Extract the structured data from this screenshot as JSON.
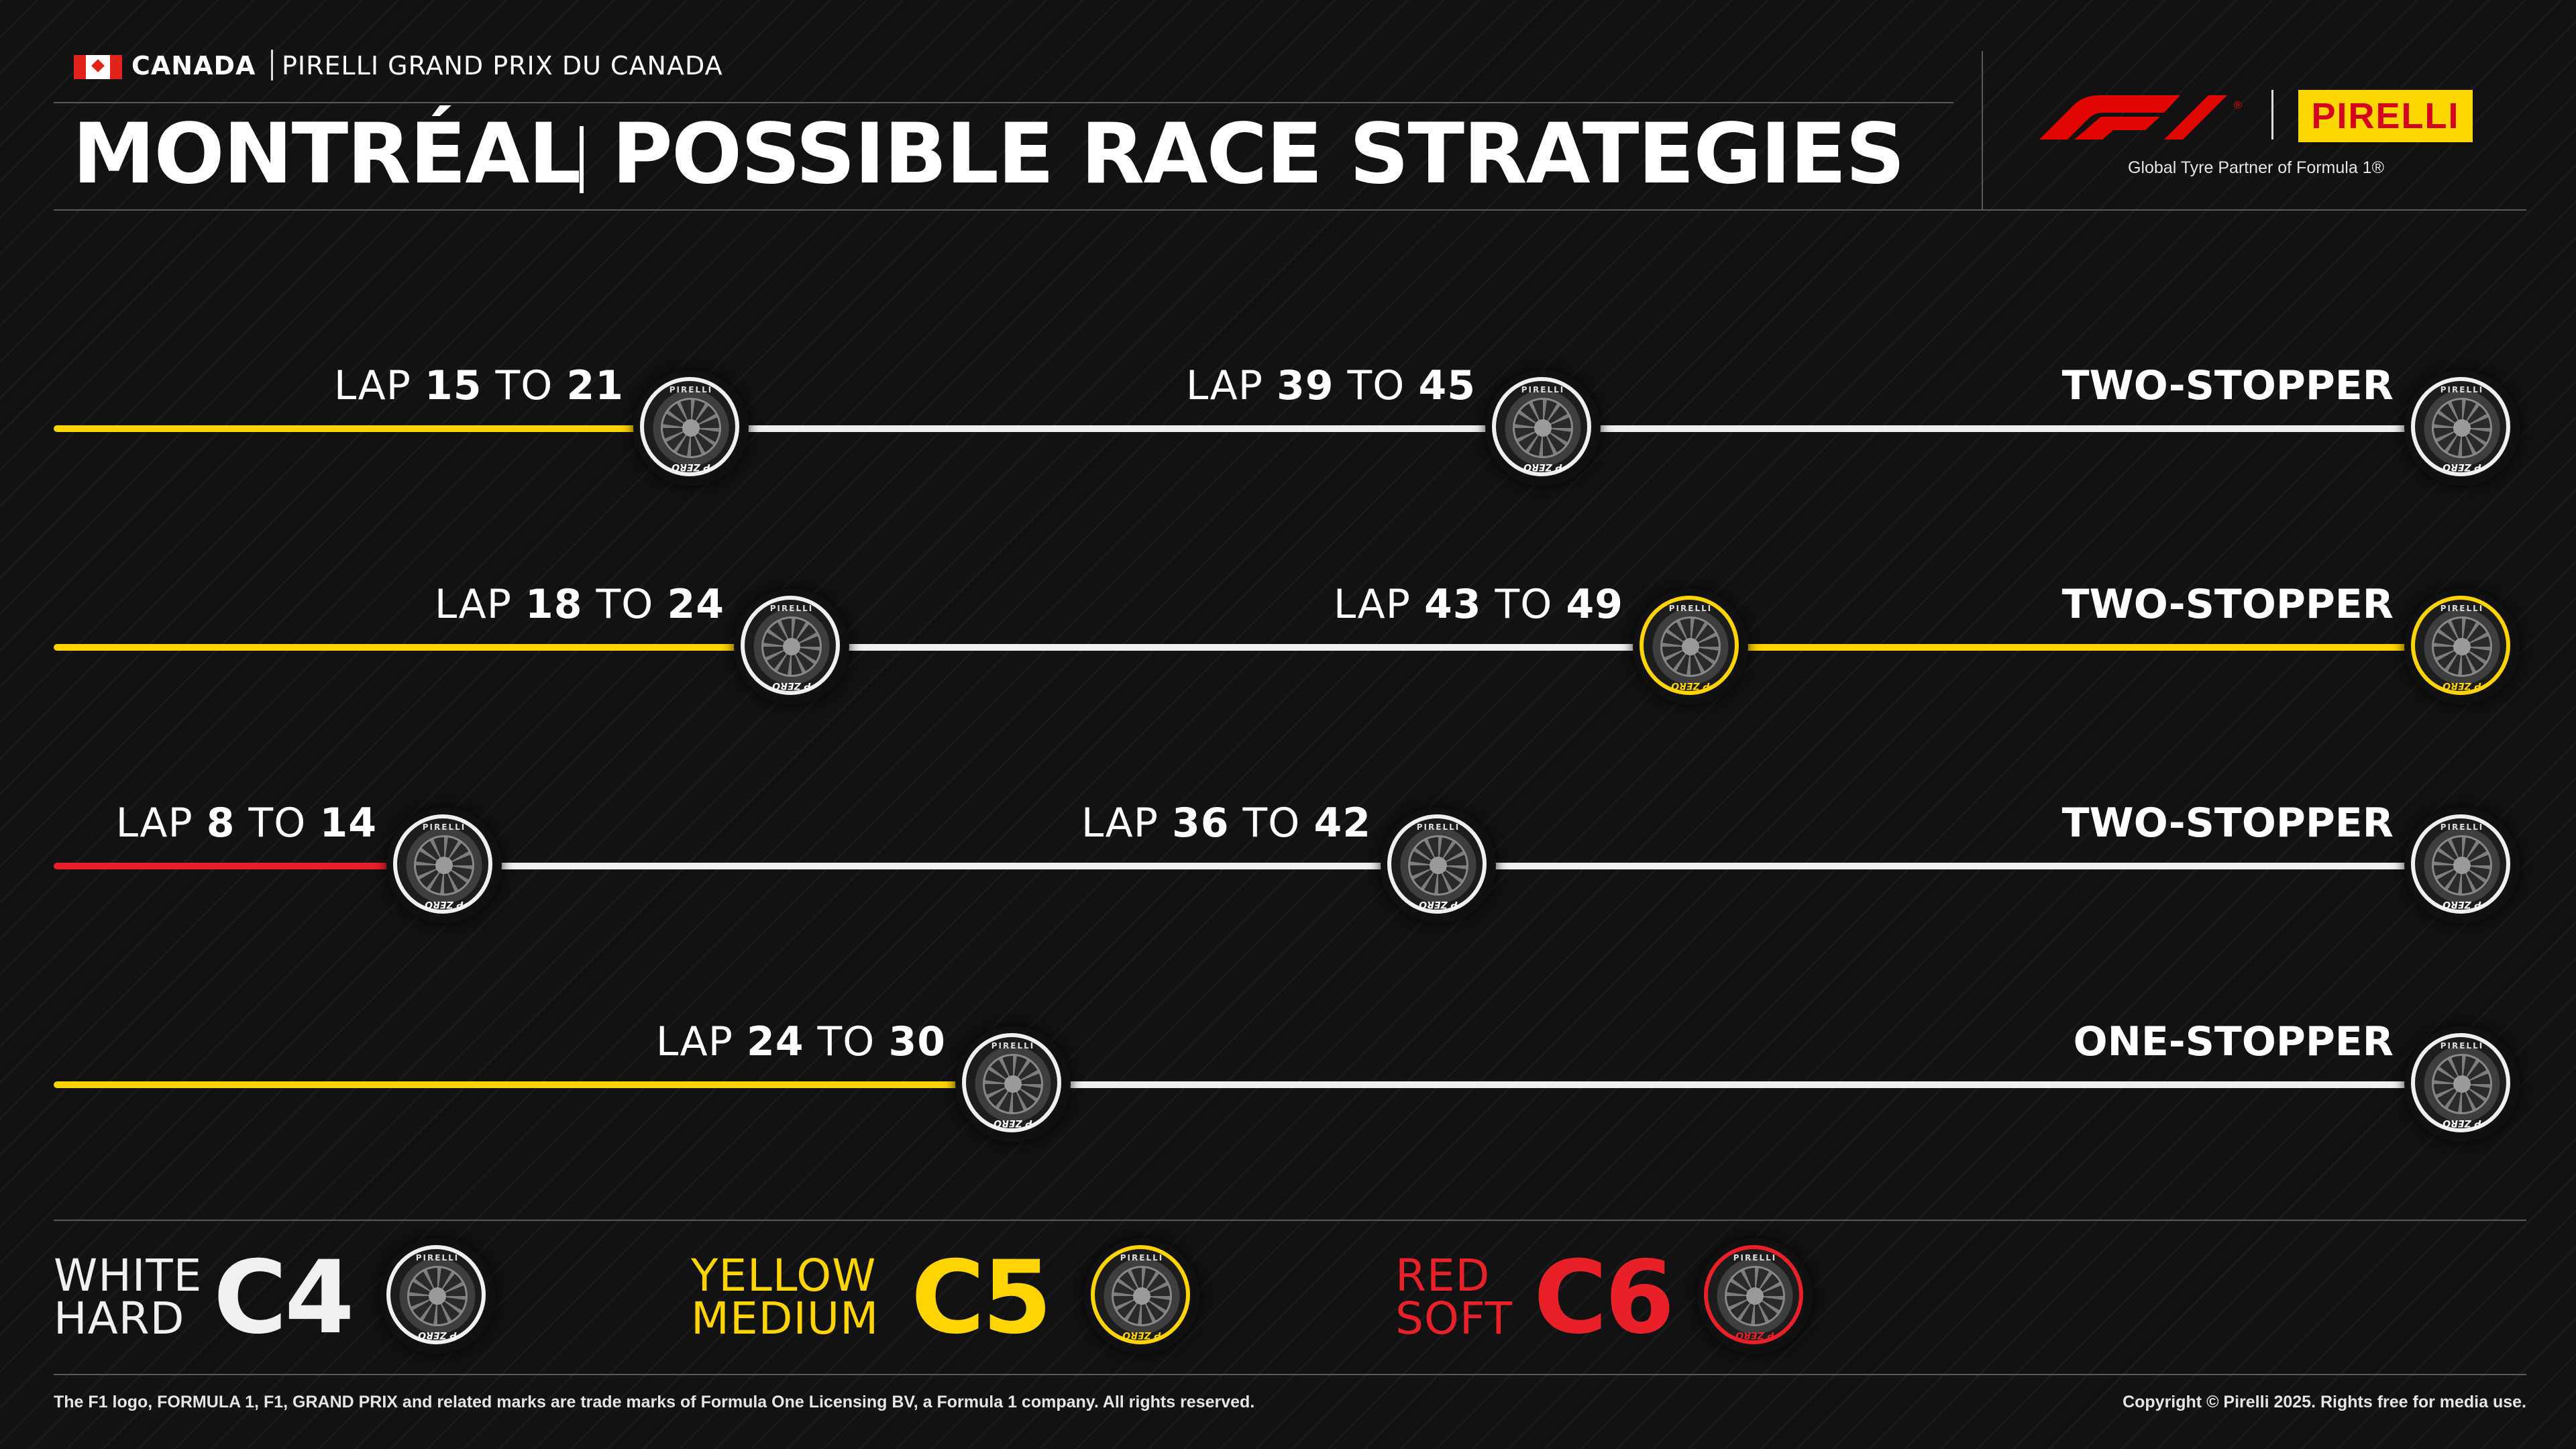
{
  "header": {
    "country": "CANADA",
    "event": "PIRELLI GRAND PRIX DU CANADA",
    "city": "MONTRÉAL",
    "title": "POSSIBLE RACE STRATEGIES"
  },
  "branding": {
    "f1_logo": "f1-logo",
    "pirelli_logo": "PIRELLI",
    "tagline": "Global Tyre Partner of Formula 1®"
  },
  "tyre_brand": "PIRELLI",
  "tyre_mark": "P ZERO",
  "colors": {
    "hard": "#f0f0f0",
    "medium": "#ffd400",
    "soft": "#e8202a",
    "background": "#121212"
  },
  "strategies": [
    {
      "stints": [
        "medium",
        "hard",
        "hard"
      ],
      "stops": [
        {
          "prefix": "LAP",
          "from": "15",
          "mid": "TO",
          "to": "21"
        },
        {
          "prefix": "LAP",
          "from": "39",
          "mid": "TO",
          "to": "45"
        }
      ],
      "result": "TWO-STOPPER"
    },
    {
      "stints": [
        "medium",
        "hard",
        "medium"
      ],
      "stops": [
        {
          "prefix": "LAP",
          "from": "18",
          "mid": "TO",
          "to": "24"
        },
        {
          "prefix": "LAP",
          "from": "43",
          "mid": "TO",
          "to": "49"
        }
      ],
      "result": "TWO-STOPPER"
    },
    {
      "stints": [
        "soft",
        "hard",
        "hard"
      ],
      "stops": [
        {
          "prefix": "LAP",
          "from": "8",
          "mid": "TO",
          "to": "14"
        },
        {
          "prefix": "LAP",
          "from": "36",
          "mid": "TO",
          "to": "42"
        }
      ],
      "result": "TWO-STOPPER"
    },
    {
      "stints": [
        "medium",
        "hard"
      ],
      "stops": [
        {
          "prefix": "LAP",
          "from": "24",
          "mid": "TO",
          "to": "30"
        }
      ],
      "result": "ONE-STOPPER"
    }
  ],
  "legend": [
    {
      "color_name": "WHITE",
      "type": "HARD",
      "code": "C4",
      "compound": "hard"
    },
    {
      "color_name": "YELLOW",
      "type": "MEDIUM",
      "code": "C5",
      "compound": "medium"
    },
    {
      "color_name": "RED",
      "type": "SOFT",
      "code": "C6",
      "compound": "soft"
    }
  ],
  "footer": {
    "trademark": "The F1 logo, FORMULA 1, F1, GRAND PRIX and related marks are trade marks of Formula One Licensing BV, a Formula 1 company. All rights reserved.",
    "copyright": "Copyright © Pirelli 2025. Rights free for media use."
  }
}
